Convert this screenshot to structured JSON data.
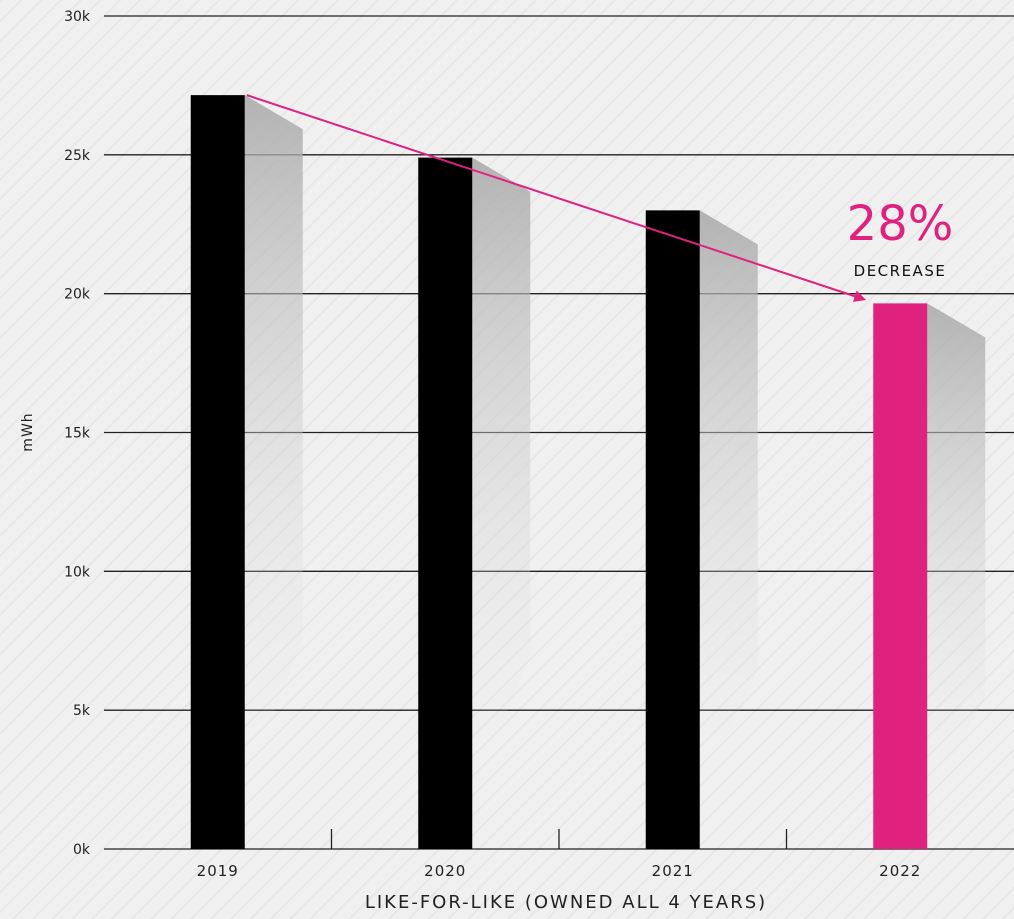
{
  "chart_data": {
    "type": "bar",
    "categories": [
      "2019",
      "2020",
      "2021",
      "2022"
    ],
    "values": [
      27150,
      24900,
      23000,
      19650
    ],
    "ylabel": "mWh",
    "xlabel": "LIKE-FOR-LIKE (OWNED ALL 4 YEARS)",
    "ylim": [
      0,
      30000
    ],
    "y_ticks": [
      {
        "value": 0,
        "label": "0k"
      },
      {
        "value": 5000,
        "label": "5k"
      },
      {
        "value": 10000,
        "label": "10k"
      },
      {
        "value": 15000,
        "label": "15k"
      },
      {
        "value": 20000,
        "label": "20k"
      },
      {
        "value": 25000,
        "label": "25k"
      },
      {
        "value": 30000,
        "label": "30k"
      }
    ],
    "grid": true,
    "highlight_index": 3,
    "annotation": {
      "value": "28%",
      "label": "DECREASE"
    }
  },
  "colors": {
    "background": "#f0f0f0",
    "bar": "#000000",
    "highlight": "#e0227f",
    "arrow": "#e0227f",
    "grid": "#222222",
    "text": "#222222"
  }
}
